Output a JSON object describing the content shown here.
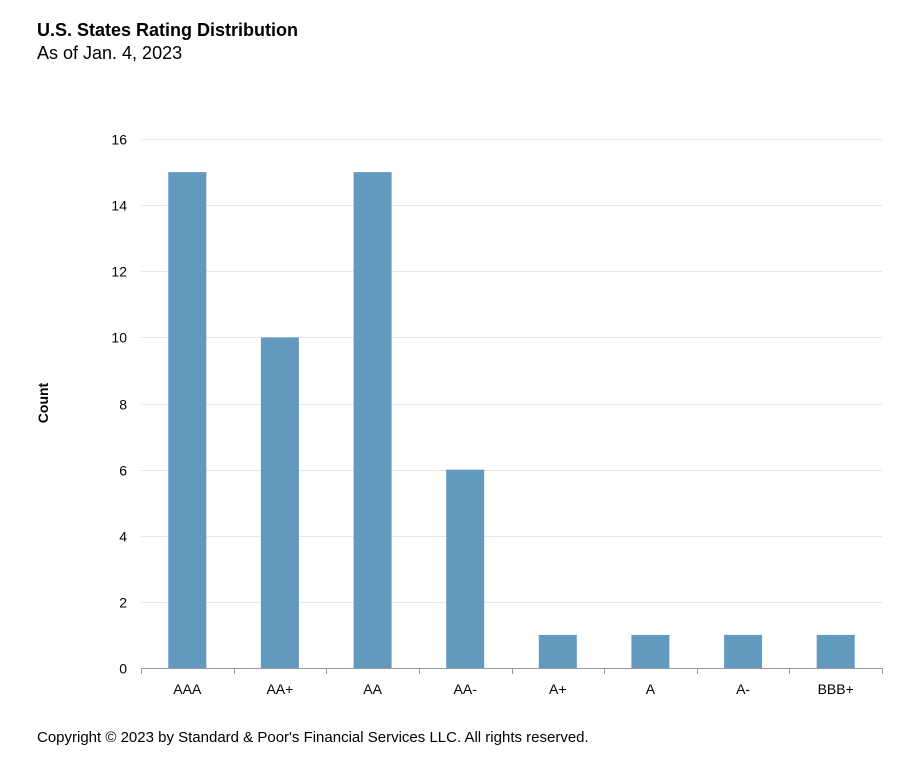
{
  "header": {
    "title": "U.S. States Rating Distribution",
    "subtitle": "As of Jan. 4, 2023"
  },
  "footer": {
    "copyright": "Copyright © 2023 by Standard & Poor's Financial Services LLC. All rights reserved."
  },
  "colors": {
    "bar": "#6199bf",
    "grid": "#e6e6e6",
    "axis": "#999999"
  },
  "chart_data": {
    "type": "bar",
    "categories": [
      "AAA",
      "AA+",
      "AA",
      "AA-",
      "A+",
      "A",
      "A-",
      "BBB+"
    ],
    "values": [
      15,
      10,
      15,
      6,
      1,
      1,
      1,
      1
    ],
    "title": "U.S. States Rating Distribution",
    "subtitle": "As of Jan. 4, 2023",
    "xlabel": "",
    "ylabel": "Count",
    "ylim": [
      0,
      16
    ],
    "yticks": [
      0,
      2,
      4,
      6,
      8,
      10,
      12,
      14,
      16
    ],
    "grid": true,
    "legend": "none"
  }
}
